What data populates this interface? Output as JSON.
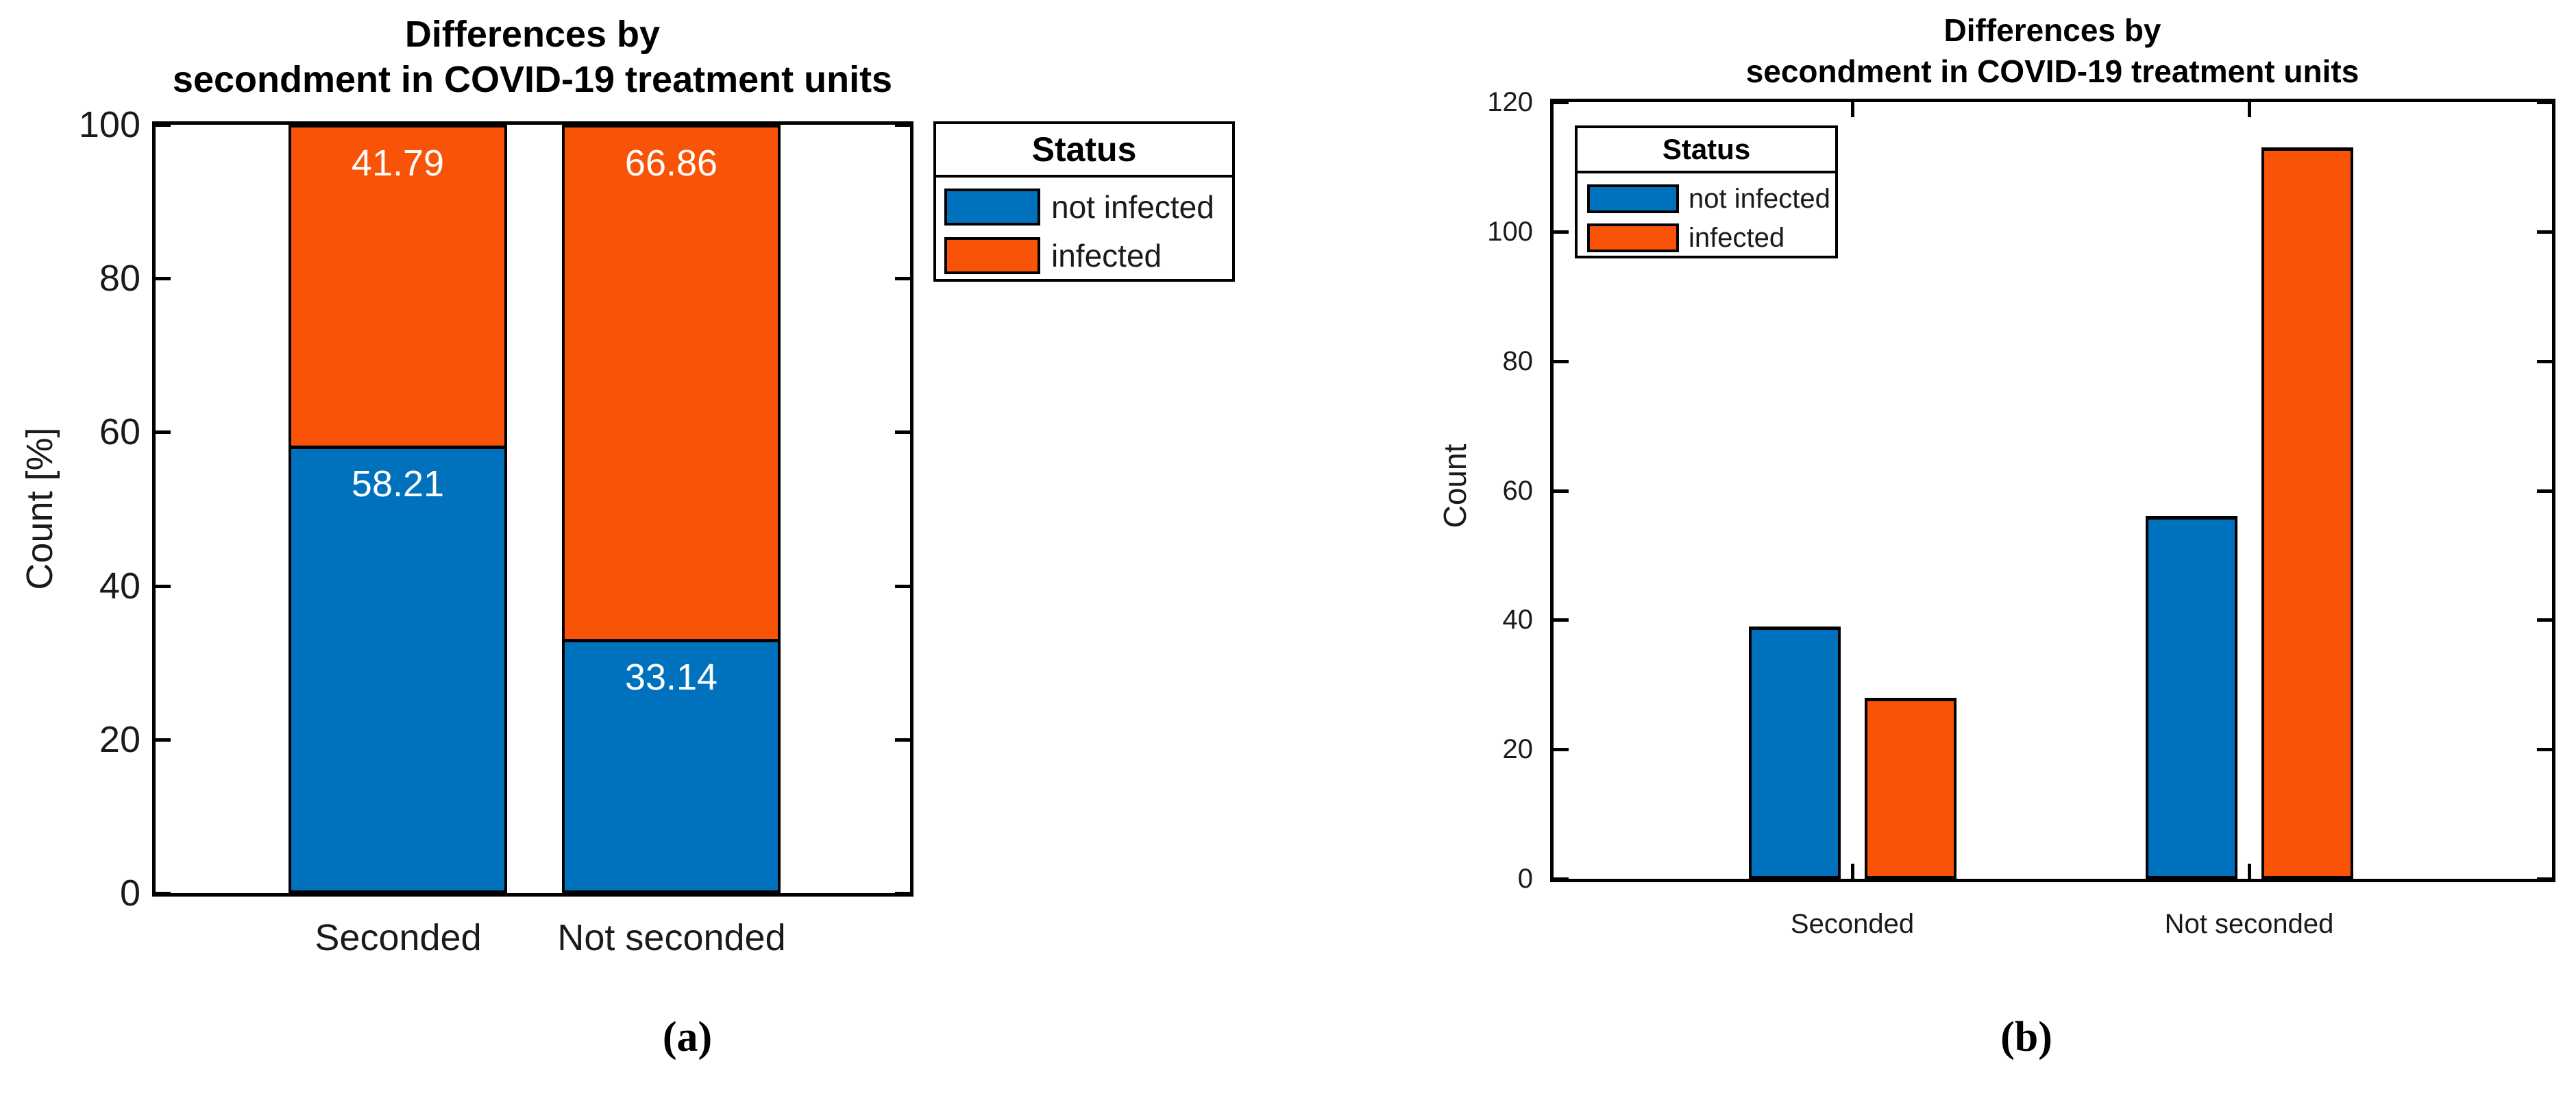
{
  "colors": {
    "not_infected": "#0072BD",
    "infected": "#F85306",
    "axis": "#000000",
    "tick_text": "#1A1A1A",
    "value_label": "#FFFFFF"
  },
  "chart_data": [
    {
      "panel": "a",
      "type": "bar",
      "mode": "stacked",
      "caption": "(a)",
      "title": "Differences by secondment in COVID-19 treatment units",
      "title_lines": [
        "Differences by",
        "secondment in COVID-19 treatment units"
      ],
      "ylabel": "Count [%]",
      "ylim": [
        0,
        100
      ],
      "yticks": [
        "0",
        "20",
        "40",
        "60",
        "80",
        "100"
      ],
      "categories": [
        "Seconded",
        "Not seconded"
      ],
      "series": [
        {
          "name": "not infected",
          "color_key": "not_infected",
          "values": [
            58.21,
            33.14
          ],
          "labels": [
            "58.21",
            "33.14"
          ]
        },
        {
          "name": "infected",
          "color_key": "infected",
          "values": [
            41.79,
            66.86
          ],
          "labels": [
            "41.79",
            "66.86"
          ]
        }
      ],
      "legend": {
        "title": "Status",
        "position": "outside-right"
      },
      "grid": false
    },
    {
      "panel": "b",
      "type": "bar",
      "mode": "grouped",
      "caption": "(b)",
      "title": "Differences by secondment in COVID-19 treatment units",
      "title_lines": [
        "Differences by",
        "secondment in COVID-19 treatment units"
      ],
      "ylabel": "Count",
      "ylim": [
        0,
        120
      ],
      "yticks": [
        "0",
        "20",
        "40",
        "60",
        "80",
        "100",
        "120"
      ],
      "categories": [
        "Seconded",
        "Not seconded"
      ],
      "series": [
        {
          "name": "not infected",
          "color_key": "not_infected",
          "values": [
            39,
            56
          ]
        },
        {
          "name": "infected",
          "color_key": "infected",
          "values": [
            28,
            113
          ]
        }
      ],
      "legend": {
        "title": "Status",
        "position": "inside-top-left"
      },
      "grid": false
    }
  ]
}
